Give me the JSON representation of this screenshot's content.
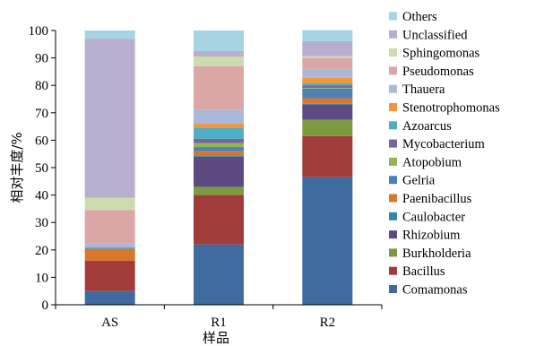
{
  "chart_data": {
    "type": "bar",
    "stacked": true,
    "xlabel": "样品",
    "ylabel": "相对丰度/%",
    "ylim": [
      0,
      100
    ],
    "yticks": [
      0,
      10,
      20,
      30,
      40,
      50,
      60,
      70,
      80,
      90,
      100
    ],
    "categories": [
      "AS",
      "R1",
      "R2"
    ],
    "legend_position": "right",
    "grid": false,
    "series": [
      {
        "name": "Comamonas",
        "color": "#3f6ba1",
        "values": [
          5,
          22,
          46.5
        ]
      },
      {
        "name": "Bacillus",
        "color": "#a23c3a",
        "values": [
          11,
          18,
          15
        ]
      },
      {
        "name": "Burkholderia",
        "color": "#7c9a3f",
        "values": [
          0,
          3,
          6
        ]
      },
      {
        "name": "Rhizobium",
        "color": "#5e4a83",
        "values": [
          0,
          11,
          5.5
        ]
      },
      {
        "name": "Caulobacter",
        "color": "#33899e",
        "values": [
          0,
          0.5,
          0.3
        ]
      },
      {
        "name": "Paenibacillus",
        "color": "#d8782f",
        "values": [
          4,
          1.5,
          2
        ]
      },
      {
        "name": "Gelria",
        "color": "#4f7fb8",
        "values": [
          0.5,
          1.5,
          3.5
        ]
      },
      {
        "name": "Atopobium",
        "color": "#94b454",
        "values": [
          0.3,
          1.5,
          0.3
        ]
      },
      {
        "name": "Mycobacterium",
        "color": "#7862a0",
        "values": [
          0.2,
          1.5,
          0.8
        ]
      },
      {
        "name": "Azoarcus",
        "color": "#4eaec6",
        "values": [
          0,
          4,
          0.8
        ]
      },
      {
        "name": "Stenotrophomonas",
        "color": "#f2953f",
        "values": [
          0,
          1.5,
          2
        ]
      },
      {
        "name": "Thauera",
        "color": "#aab8da",
        "values": [
          1.5,
          5,
          3.3
        ]
      },
      {
        "name": "Pseudomonas",
        "color": "#dba6a6",
        "values": [
          12,
          16,
          4
        ]
      },
      {
        "name": "Sphingomonas",
        "color": "#cddcac",
        "values": [
          4.5,
          3.5,
          0.6
        ]
      },
      {
        "name": "Unclassified",
        "color": "#b8aece",
        "values": [
          58,
          2,
          5.5
        ]
      },
      {
        "name": "Others",
        "color": "#a5d4e2",
        "values": [
          3,
          7.5,
          4
        ]
      }
    ]
  }
}
